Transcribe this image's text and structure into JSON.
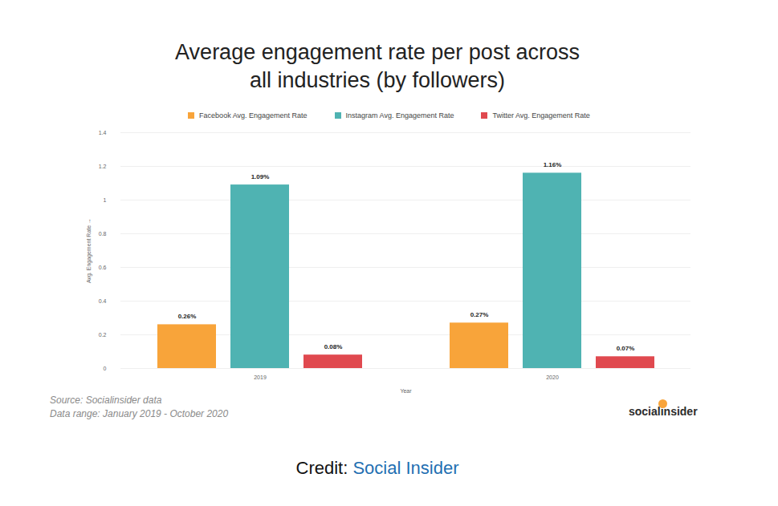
{
  "chart_data": {
    "type": "bar",
    "title": "Average engagement rate per post across all industries (by followers)",
    "xlabel": "Year",
    "ylabel": "Avg. Engagement Rate",
    "categories": [
      "2019",
      "2020"
    ],
    "series": [
      {
        "name": "Facebook Avg. Engagement Rate",
        "color": "#f8a43a",
        "values": [
          0.26,
          0.27
        ],
        "value_labels": [
          "0.26%",
          "0.27%"
        ]
      },
      {
        "name": "Instagram Avg. Engagement Rate",
        "color": "#4fb3b2",
        "values": [
          1.09,
          1.16
        ],
        "value_labels": [
          "1.09%",
          "1.16%"
        ]
      },
      {
        "name": "Twitter Avg. Engagement Rate",
        "color": "#e0494f",
        "values": [
          0.08,
          0.07
        ],
        "value_labels": [
          "0.08%",
          "0.07%"
        ]
      }
    ],
    "ylim": [
      0,
      1.4
    ],
    "yticks": [
      0,
      0.2,
      0.4,
      0.6,
      0.8,
      1,
      1.2,
      1.4
    ],
    "grid": true,
    "legend": "top",
    "data_labels": true,
    "annotations": [
      "Source: Socialinsider data",
      "Data range: January 2019 - October 2020",
      "socialinsider",
      "Credit: Social Insider"
    ]
  }
}
